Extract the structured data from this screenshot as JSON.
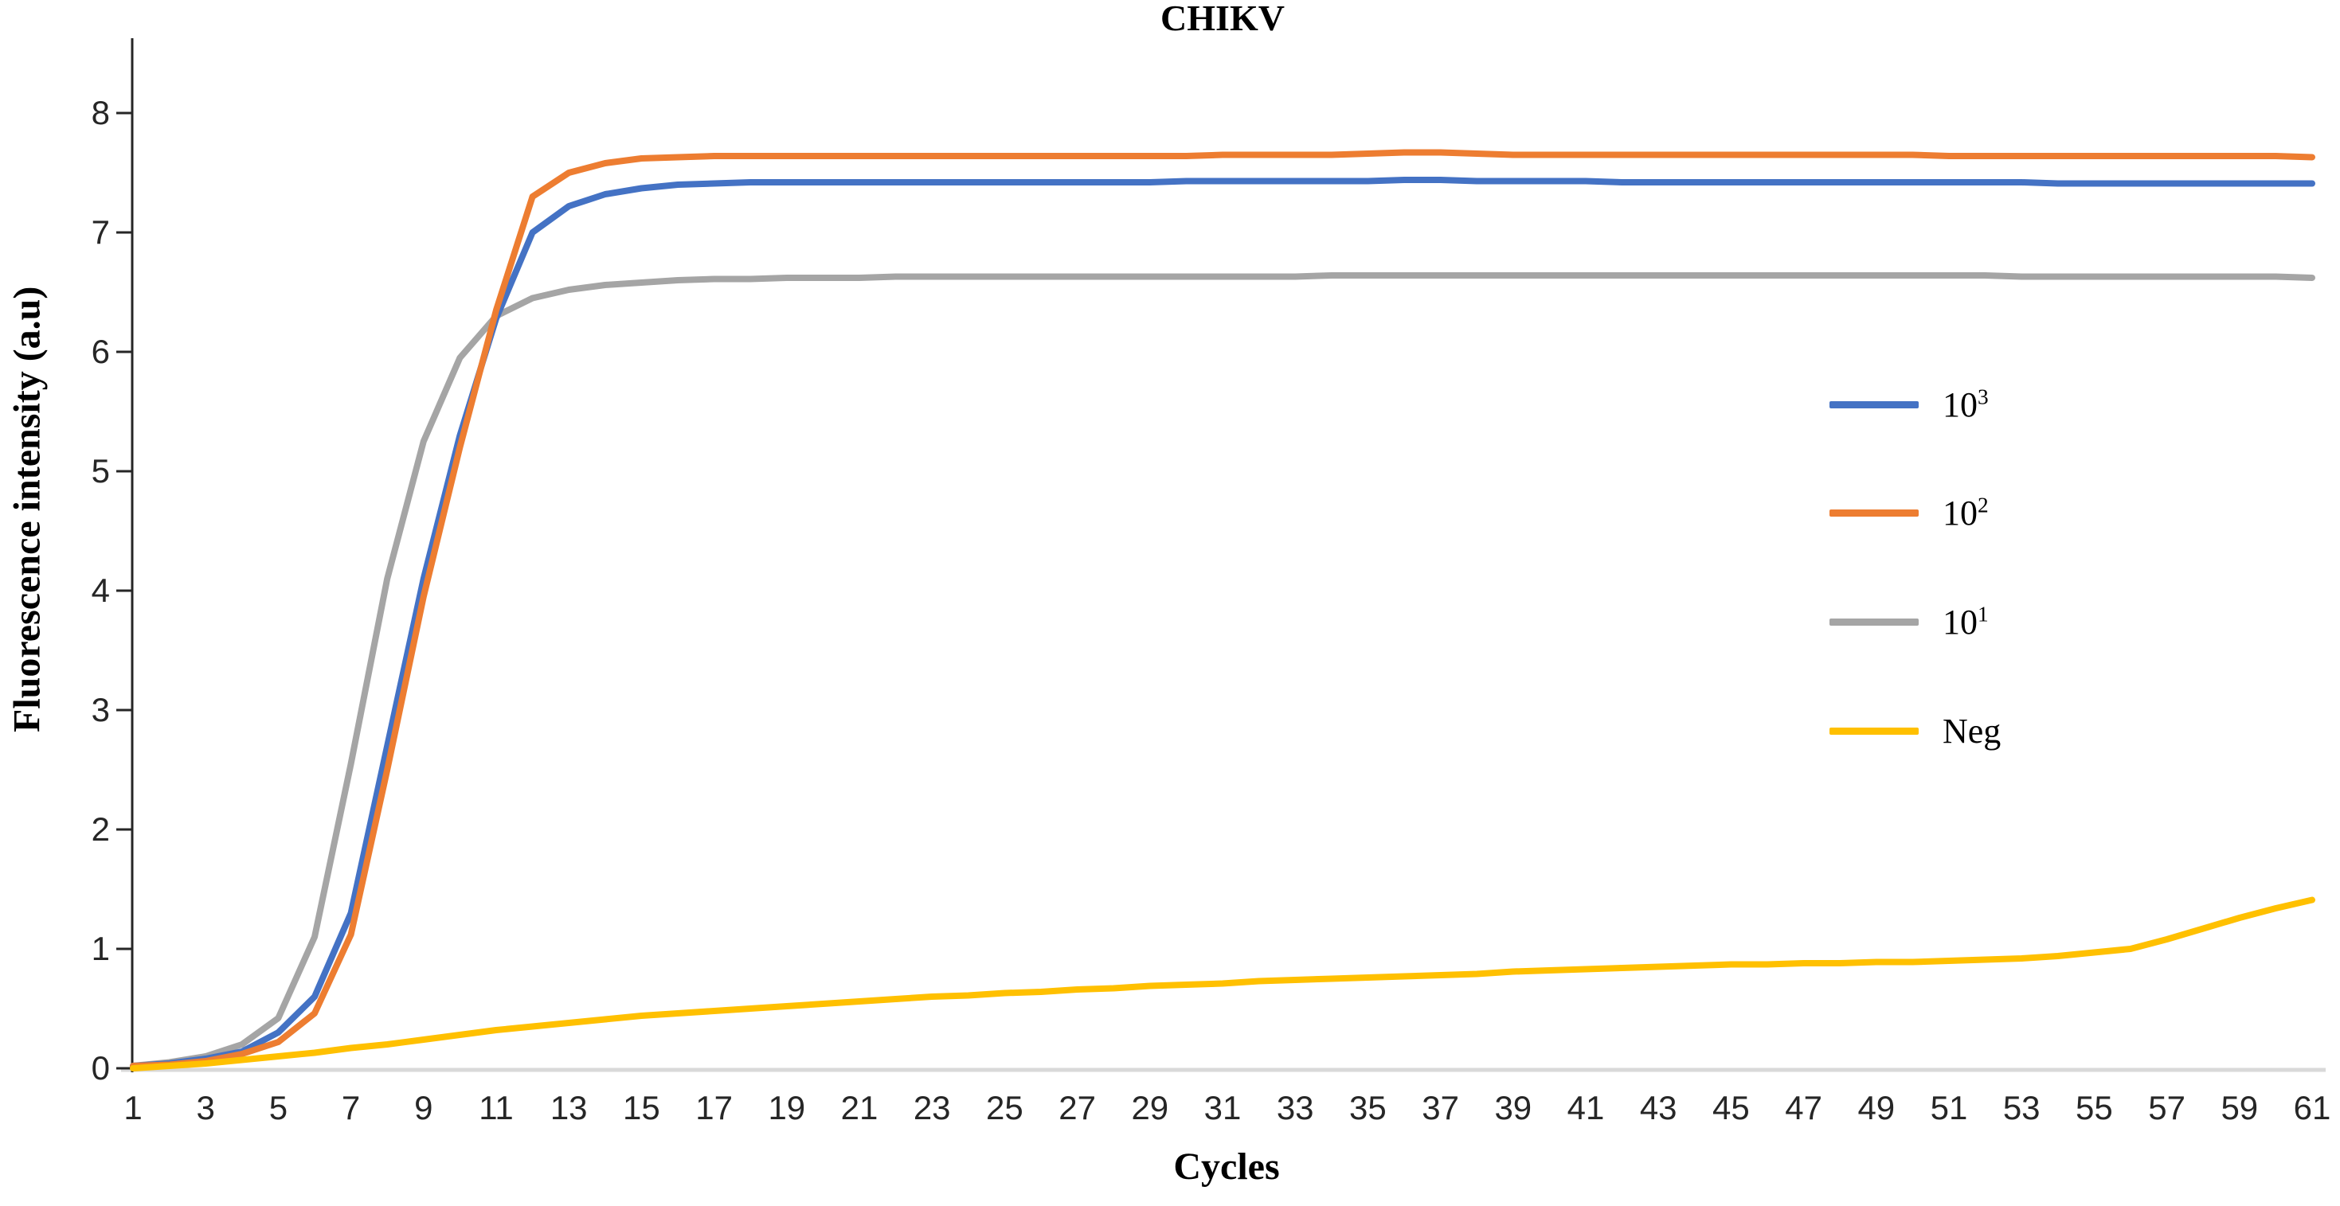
{
  "chart_data": {
    "type": "line",
    "title": "CHIKV",
    "xlabel": "Cycles",
    "ylabel": "Fluorescence intensity (a.u)",
    "xlim": [
      1,
      61
    ],
    "ylim": [
      0,
      8.5
    ],
    "grid": "baseline-only",
    "legend_position": "right-middle",
    "axis_color": "#262626",
    "baseline_color": "#d9d9d9",
    "x": [
      1,
      2,
      3,
      4,
      5,
      6,
      7,
      8,
      9,
      10,
      11,
      12,
      13,
      14,
      15,
      16,
      17,
      18,
      19,
      20,
      21,
      22,
      23,
      24,
      25,
      26,
      27,
      28,
      29,
      30,
      31,
      32,
      33,
      34,
      35,
      36,
      37,
      38,
      39,
      40,
      41,
      42,
      43,
      44,
      45,
      46,
      47,
      48,
      49,
      50,
      51,
      52,
      53,
      54,
      55,
      56,
      57,
      58,
      59,
      60,
      61
    ],
    "xtick_labels": [
      "1",
      "3",
      "5",
      "7",
      "9",
      "11",
      "13",
      "15",
      "17",
      "19",
      "21",
      "23",
      "25",
      "27",
      "29",
      "31",
      "33",
      "35",
      "37",
      "39",
      "41",
      "43",
      "45",
      "47",
      "49",
      "51",
      "53",
      "55",
      "57",
      "59",
      "61"
    ],
    "ytick_values": [
      0,
      1,
      2,
      3,
      4,
      5,
      6,
      7,
      8
    ],
    "ytick_labels": [
      "0",
      "1",
      "2",
      "3",
      "4",
      "5",
      "6",
      "7",
      "8"
    ],
    "series": [
      {
        "name": "10^3",
        "label_base": "10",
        "label_sup": "3",
        "color": "#4472C4",
        "values": [
          0.02,
          0.04,
          0.08,
          0.14,
          0.3,
          0.6,
          1.3,
          2.7,
          4.1,
          5.3,
          6.28,
          7.0,
          7.22,
          7.32,
          7.37,
          7.4,
          7.41,
          7.42,
          7.42,
          7.42,
          7.42,
          7.42,
          7.42,
          7.42,
          7.42,
          7.42,
          7.42,
          7.42,
          7.42,
          7.43,
          7.43,
          7.43,
          7.43,
          7.43,
          7.43,
          7.44,
          7.44,
          7.43,
          7.43,
          7.43,
          7.43,
          7.42,
          7.42,
          7.42,
          7.42,
          7.42,
          7.42,
          7.42,
          7.42,
          7.42,
          7.42,
          7.42,
          7.42,
          7.41,
          7.41,
          7.41,
          7.41,
          7.41,
          7.41,
          7.41,
          7.41
        ]
      },
      {
        "name": "10^2",
        "label_base": "10",
        "label_sup": "2",
        "color": "#ED7D31",
        "values": [
          0.02,
          0.03,
          0.06,
          0.12,
          0.22,
          0.46,
          1.12,
          2.5,
          3.95,
          5.2,
          6.35,
          7.3,
          7.5,
          7.58,
          7.62,
          7.63,
          7.64,
          7.64,
          7.64,
          7.64,
          7.64,
          7.64,
          7.64,
          7.64,
          7.64,
          7.64,
          7.64,
          7.64,
          7.64,
          7.64,
          7.65,
          7.65,
          7.65,
          7.65,
          7.66,
          7.67,
          7.67,
          7.66,
          7.65,
          7.65,
          7.65,
          7.65,
          7.65,
          7.65,
          7.65,
          7.65,
          7.65,
          7.65,
          7.65,
          7.65,
          7.64,
          7.64,
          7.64,
          7.64,
          7.64,
          7.64,
          7.64,
          7.64,
          7.64,
          7.64,
          7.63
        ]
      },
      {
        "name": "10^1",
        "label_base": "10",
        "label_sup": "1",
        "color": "#A5A5A5",
        "values": [
          0.02,
          0.05,
          0.1,
          0.2,
          0.42,
          1.1,
          2.55,
          4.1,
          5.25,
          5.95,
          6.3,
          6.45,
          6.52,
          6.56,
          6.58,
          6.6,
          6.61,
          6.61,
          6.62,
          6.62,
          6.62,
          6.63,
          6.63,
          6.63,
          6.63,
          6.63,
          6.63,
          6.63,
          6.63,
          6.63,
          6.63,
          6.63,
          6.63,
          6.64,
          6.64,
          6.64,
          6.64,
          6.64,
          6.64,
          6.64,
          6.64,
          6.64,
          6.64,
          6.64,
          6.64,
          6.64,
          6.64,
          6.64,
          6.64,
          6.64,
          6.64,
          6.64,
          6.63,
          6.63,
          6.63,
          6.63,
          6.63,
          6.63,
          6.63,
          6.63,
          6.62
        ]
      },
      {
        "name": "Neg",
        "label_base": "Neg",
        "label_sup": "",
        "color": "#FFC000",
        "values": [
          0.0,
          0.02,
          0.04,
          0.07,
          0.1,
          0.13,
          0.17,
          0.2,
          0.24,
          0.28,
          0.32,
          0.35,
          0.38,
          0.41,
          0.44,
          0.46,
          0.48,
          0.5,
          0.52,
          0.54,
          0.56,
          0.58,
          0.6,
          0.61,
          0.63,
          0.64,
          0.66,
          0.67,
          0.69,
          0.7,
          0.71,
          0.73,
          0.74,
          0.75,
          0.76,
          0.77,
          0.78,
          0.79,
          0.81,
          0.82,
          0.83,
          0.84,
          0.85,
          0.86,
          0.87,
          0.87,
          0.88,
          0.88,
          0.89,
          0.89,
          0.9,
          0.91,
          0.92,
          0.94,
          0.97,
          1.0,
          1.08,
          1.17,
          1.26,
          1.34,
          1.41
        ]
      }
    ],
    "draw_order": [
      2,
      0,
      1,
      3
    ]
  }
}
